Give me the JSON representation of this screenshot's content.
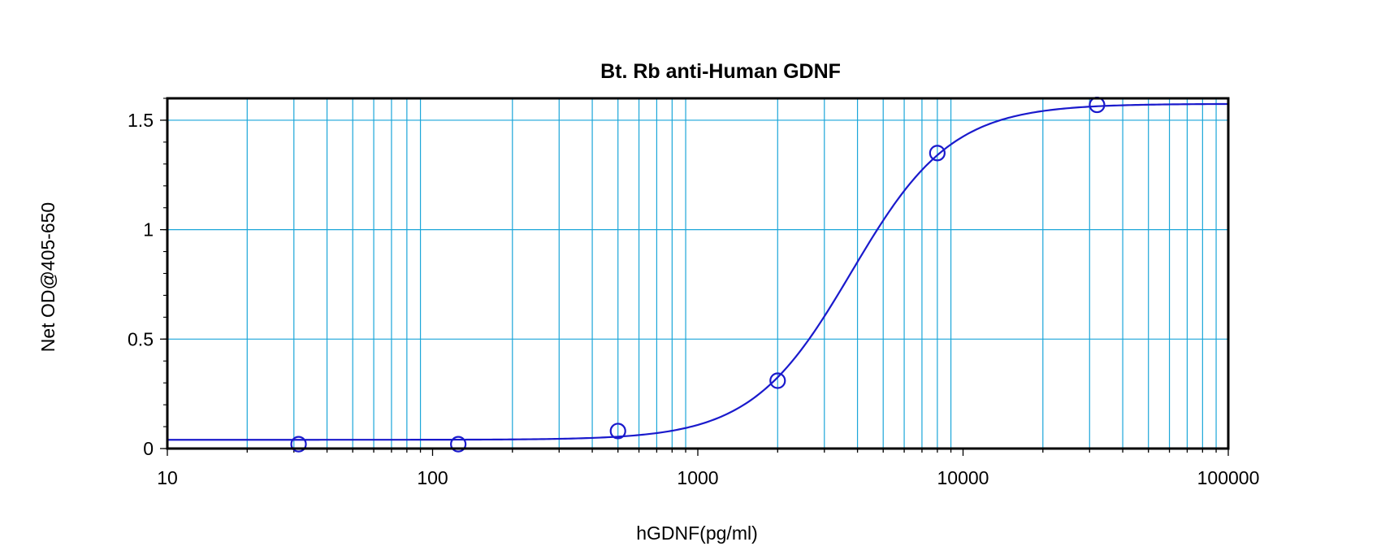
{
  "chart_data": {
    "type": "scatter",
    "title": "Bt. Rb anti-Human GDNF",
    "xlabel": "hGDNF(pg/ml)",
    "ylabel": "Net OD@405-650",
    "x_scale": "log",
    "xlim": [
      10,
      100000
    ],
    "ylim": [
      0,
      1.6
    ],
    "x_ticks": [
      {
        "value": 10,
        "label": "10"
      },
      {
        "value": 100,
        "label": "100"
      },
      {
        "value": 1000,
        "label": "1000"
      },
      {
        "value": 10000,
        "label": "10000"
      },
      {
        "value": 100000,
        "label": "100000"
      }
    ],
    "y_ticks": [
      {
        "value": 0,
        "label": "0"
      },
      {
        "value": 0.5,
        "label": "0.5"
      },
      {
        "value": 1,
        "label": "1"
      },
      {
        "value": 1.5,
        "label": "1.5"
      }
    ],
    "grid": true,
    "legend": "none",
    "series": [
      {
        "points": [
          {
            "x": 31.25,
            "y": 0.02
          },
          {
            "x": 125,
            "y": 0.02
          },
          {
            "x": 500,
            "y": 0.08
          },
          {
            "x": 2000,
            "y": 0.31
          },
          {
            "x": 8000,
            "y": 1.35
          },
          {
            "x": 32000,
            "y": 1.57
          }
        ],
        "fit": {
          "model": "4PL",
          "bottom": 0.04,
          "top": 1.575,
          "ec50": 3800,
          "hill": 2.3
        }
      }
    ],
    "colors": {
      "series": "#1a1acc",
      "grid": "#1ba6d9",
      "frame": "#000000"
    }
  }
}
